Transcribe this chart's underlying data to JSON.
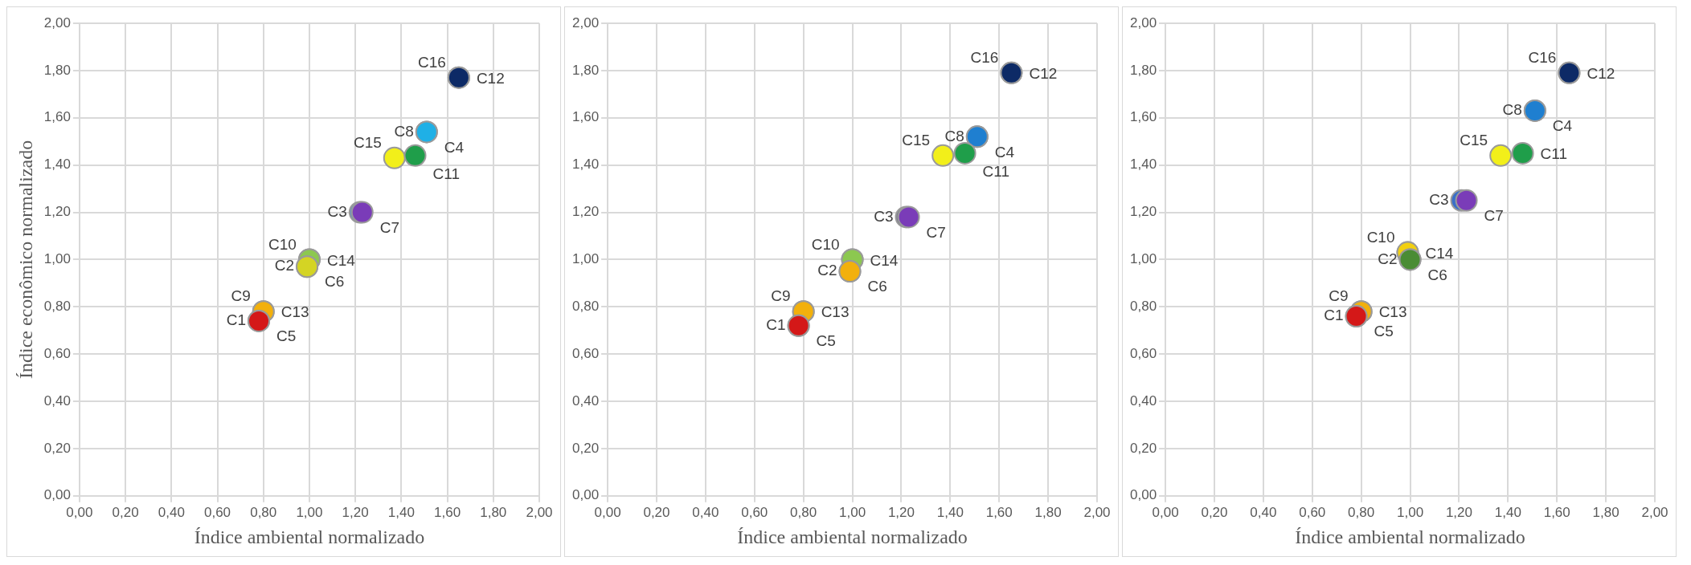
{
  "chart_data": [
    {
      "type": "scatter",
      "xlabel": "Índice ambiental normalizado",
      "ylabel": "Índice econômico normalizado",
      "marker": "circle",
      "grid": true,
      "xlim": [
        0,
        2
      ],
      "ylim": [
        0,
        2
      ],
      "xticks": [
        {
          "value": 0,
          "label": "0,00"
        },
        {
          "value": 0.2,
          "label": "0,20"
        },
        {
          "value": 0.4,
          "label": "0,40"
        },
        {
          "value": 0.6,
          "label": "0,60"
        },
        {
          "value": 0.8,
          "label": "0,80"
        },
        {
          "value": 1,
          "label": "1,00"
        },
        {
          "value": 1.2,
          "label": "1,20"
        },
        {
          "value": 1.4,
          "label": "1,40"
        },
        {
          "value": 1.6,
          "label": "1,60"
        },
        {
          "value": 1.8,
          "label": "1,80"
        },
        {
          "value": 2,
          "label": "2,00"
        }
      ],
      "yticks": [
        {
          "value": 0,
          "label": "0,00"
        },
        {
          "value": 0.2,
          "label": "0,20"
        },
        {
          "value": 0.4,
          "label": "0,40"
        },
        {
          "value": 0.6,
          "label": "0,60"
        },
        {
          "value": 0.8,
          "label": "0,80"
        },
        {
          "value": 1,
          "label": "1,00"
        },
        {
          "value": 1.2,
          "label": "1,20"
        },
        {
          "value": 1.4,
          "label": "1,40"
        },
        {
          "value": 1.6,
          "label": "1,60"
        },
        {
          "value": 1.8,
          "label": "1,80"
        },
        {
          "value": 2,
          "label": "2,00"
        }
      ],
      "x": [
        1.65,
        1.65,
        1.51,
        1.51,
        1.37,
        1.46,
        1.22,
        1.23,
        1.0,
        1.0,
        0.99,
        0.99,
        0.8,
        0.8,
        0.78,
        0.78
      ],
      "values": [
        1.77,
        1.77,
        1.54,
        1.54,
        1.43,
        1.44,
        1.2,
        1.2,
        1.0,
        1.0,
        0.97,
        0.97,
        0.78,
        0.78,
        0.74,
        0.74
      ],
      "colors": [
        "#0d2a66",
        "#0d2a66",
        "#1fb0e6",
        "#1fb0e6",
        "#f2ef1a",
        "#1f9e4a",
        "#5a8fc8",
        "#7a3cb8",
        "#8cc850",
        "#8cc850",
        "#d4d424",
        "#d4d424",
        "#f2b00c",
        "#f2b00c",
        "#d41818",
        "#d41818"
      ],
      "value_labels": [
        "C16",
        "C12",
        "C8",
        "C4",
        "C15",
        "C11",
        "C3",
        "C7",
        "C10",
        "C14",
        "C2",
        "C6",
        "C9",
        "C13",
        "C1",
        "C5"
      ]
    },
    {
      "type": "scatter",
      "xlabel": "Índice ambiental normalizado",
      "marker": "circle",
      "grid": true,
      "xlim": [
        0,
        2
      ],
      "ylim": [
        0,
        2
      ],
      "xticks": [
        {
          "value": 0,
          "label": "0,00"
        },
        {
          "value": 0.2,
          "label": "0,20"
        },
        {
          "value": 0.4,
          "label": "0,40"
        },
        {
          "value": 0.6,
          "label": "0,60"
        },
        {
          "value": 0.8,
          "label": "0,80"
        },
        {
          "value": 1,
          "label": "1,00"
        },
        {
          "value": 1.2,
          "label": "1,20"
        },
        {
          "value": 1.4,
          "label": "1,40"
        },
        {
          "value": 1.6,
          "label": "1,60"
        },
        {
          "value": 1.8,
          "label": "1,80"
        },
        {
          "value": 2,
          "label": "2,00"
        }
      ],
      "yticks": [
        {
          "value": 0,
          "label": "0,00"
        },
        {
          "value": 0.2,
          "label": "0,20"
        },
        {
          "value": 0.4,
          "label": "0,40"
        },
        {
          "value": 0.6,
          "label": "0,60"
        },
        {
          "value": 0.8,
          "label": "0,80"
        },
        {
          "value": 1,
          "label": "1,00"
        },
        {
          "value": 1.2,
          "label": "1,20"
        },
        {
          "value": 1.4,
          "label": "1,40"
        },
        {
          "value": 1.6,
          "label": "1,60"
        },
        {
          "value": 1.8,
          "label": "1,80"
        },
        {
          "value": 2,
          "label": "2,00"
        }
      ],
      "x": [
        1.65,
        1.65,
        1.51,
        1.51,
        1.37,
        1.46,
        1.22,
        1.23,
        1.0,
        1.0,
        0.99,
        0.99,
        0.8,
        0.8,
        0.78,
        0.78
      ],
      "values": [
        1.79,
        1.79,
        1.52,
        1.52,
        1.44,
        1.45,
        1.18,
        1.18,
        1.0,
        1.0,
        0.95,
        0.95,
        0.78,
        0.78,
        0.72,
        0.72
      ],
      "colors": [
        "#0d2a66",
        "#0d2a66",
        "#1f7fd0",
        "#1f7fd0",
        "#f2ef1a",
        "#1f9e4a",
        "#7a7a90",
        "#7a3cb8",
        "#8cc850",
        "#8cc850",
        "#f2b00c",
        "#f2b00c",
        "#f2b00c",
        "#f2b00c",
        "#d41818",
        "#d41818"
      ],
      "value_labels": [
        "C16",
        "C12",
        "C8",
        "C4",
        "C15",
        "C11",
        "C3",
        "C7",
        "C10",
        "C14",
        "C2",
        "C6",
        "C9",
        "C13",
        "C1",
        "C5"
      ]
    },
    {
      "type": "scatter",
      "xlabel": "Índice ambiental normalizado",
      "marker": "circle",
      "grid": true,
      "xlim": [
        0,
        2
      ],
      "ylim": [
        0,
        2
      ],
      "xticks": [
        {
          "value": 0,
          "label": "0,00"
        },
        {
          "value": 0.2,
          "label": "0,20"
        },
        {
          "value": 0.4,
          "label": "0,40"
        },
        {
          "value": 0.6,
          "label": "0,60"
        },
        {
          "value": 0.8,
          "label": "0,80"
        },
        {
          "value": 1,
          "label": "1,00"
        },
        {
          "value": 1.2,
          "label": "1,20"
        },
        {
          "value": 1.4,
          "label": "1,40"
        },
        {
          "value": 1.6,
          "label": "1,60"
        },
        {
          "value": 1.8,
          "label": "1,80"
        },
        {
          "value": 2,
          "label": "2,00"
        }
      ],
      "yticks": [
        {
          "value": 0,
          "label": "0,00"
        },
        {
          "value": 0.2,
          "label": "0,20"
        },
        {
          "value": 0.4,
          "label": "0,40"
        },
        {
          "value": 0.6,
          "label": "0,60"
        },
        {
          "value": 0.8,
          "label": "0,80"
        },
        {
          "value": 1,
          "label": "1,00"
        },
        {
          "value": 1.2,
          "label": "1,20"
        },
        {
          "value": 1.4,
          "label": "1,40"
        },
        {
          "value": 1.6,
          "label": "1,60"
        },
        {
          "value": 1.8,
          "label": "1,80"
        },
        {
          "value": 2,
          "label": "2,00"
        }
      ],
      "x": [
        1.65,
        1.65,
        1.51,
        1.51,
        1.37,
        1.46,
        1.21,
        1.23,
        0.99,
        0.99,
        1.0,
        1.0,
        0.8,
        0.8,
        0.78,
        0.78
      ],
      "values": [
        1.79,
        1.79,
        1.63,
        1.63,
        1.44,
        1.45,
        1.25,
        1.25,
        1.03,
        1.03,
        1.0,
        1.0,
        0.78,
        0.78,
        0.76,
        0.76
      ],
      "colors": [
        "#0d2a66",
        "#0d2a66",
        "#1f7fd0",
        "#1f7fd0",
        "#f2ef1a",
        "#1f9e4a",
        "#3a6fc8",
        "#7a3cb8",
        "#f2d010",
        "#f2d010",
        "#4a8c34",
        "#4a8c34",
        "#f2b00c",
        "#f2b00c",
        "#d41818",
        "#d41818"
      ],
      "value_labels": [
        "C16",
        "C12",
        "C8",
        "C4",
        "C15",
        "C11",
        "C3",
        "C7",
        "C10",
        "C14",
        "C2",
        "C6",
        "C9",
        "C13",
        "C1",
        "C5"
      ]
    }
  ]
}
